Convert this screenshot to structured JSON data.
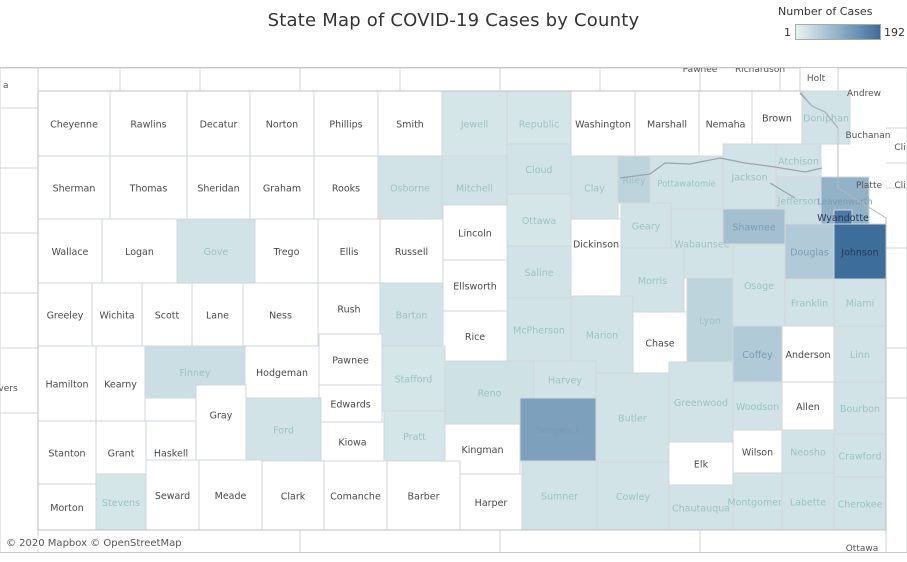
{
  "title": "State Map of COVID-19 Cases by County",
  "legend": {
    "title": "Number of Cases",
    "min": "1",
    "max": "192",
    "color_min": "#e6f4f2",
    "color_max": "#3d6e9b"
  },
  "attribution": "© 2020 Mapbox  © OpenStreetMap",
  "neighbor_labels": [
    "Pawnee",
    "Richardson",
    "Holt",
    "Andrew",
    "Buchanan",
    "Cli",
    "Platte",
    "Cli",
    "Ottawa",
    "vers",
    "a"
  ],
  "counties": [
    {
      "name": "Cheyenne",
      "cases": 0
    },
    {
      "name": "Rawlins",
      "cases": 0
    },
    {
      "name": "Decatur",
      "cases": 0
    },
    {
      "name": "Norton",
      "cases": 0
    },
    {
      "name": "Phillips",
      "cases": 0
    },
    {
      "name": "Smith",
      "cases": 0
    },
    {
      "name": "Jewell",
      "cases": 3
    },
    {
      "name": "Republic",
      "cases": 3
    },
    {
      "name": "Washington",
      "cases": 0
    },
    {
      "name": "Marshall",
      "cases": 0
    },
    {
      "name": "Nemaha",
      "cases": 0
    },
    {
      "name": "Brown",
      "cases": 0
    },
    {
      "name": "Doniphan",
      "cases": 4
    },
    {
      "name": "Sherman",
      "cases": 0
    },
    {
      "name": "Thomas",
      "cases": 0
    },
    {
      "name": "Sheridan",
      "cases": 0
    },
    {
      "name": "Graham",
      "cases": 0
    },
    {
      "name": "Rooks",
      "cases": 0
    },
    {
      "name": "Osborne",
      "cases": 4
    },
    {
      "name": "Mitchell",
      "cases": 4
    },
    {
      "name": "Cloud",
      "cases": 4
    },
    {
      "name": "Clay",
      "cases": 4
    },
    {
      "name": "Riley",
      "cases": 12
    },
    {
      "name": "Pottawatomie",
      "cases": 4
    },
    {
      "name": "Jackson",
      "cases": 4
    },
    {
      "name": "Atchison",
      "cases": 4
    },
    {
      "name": "Jefferson",
      "cases": 6
    },
    {
      "name": "Leavenworth",
      "cases": 48
    },
    {
      "name": "Wallace",
      "cases": 0
    },
    {
      "name": "Logan",
      "cases": 0
    },
    {
      "name": "Gove",
      "cases": 4
    },
    {
      "name": "Trego",
      "cases": 0
    },
    {
      "name": "Ellis",
      "cases": 0
    },
    {
      "name": "Russell",
      "cases": 0
    },
    {
      "name": "Lincoln",
      "cases": 0
    },
    {
      "name": "Ottawa",
      "cases": 3
    },
    {
      "name": "Dickinson",
      "cases": 0
    },
    {
      "name": "Geary",
      "cases": 4
    },
    {
      "name": "Wabaunsee",
      "cases": 4
    },
    {
      "name": "Shawnee",
      "cases": 30
    },
    {
      "name": "Douglas",
      "cases": 20
    },
    {
      "name": "Wyandotte",
      "cases": 160
    },
    {
      "name": "Johnson",
      "cases": 192
    },
    {
      "name": "Greeley",
      "cases": 0
    },
    {
      "name": "Wichita",
      "cases": 0
    },
    {
      "name": "Scott",
      "cases": 0
    },
    {
      "name": "Lane",
      "cases": 0
    },
    {
      "name": "Ness",
      "cases": 0
    },
    {
      "name": "Rush",
      "cases": 0
    },
    {
      "name": "Barton",
      "cases": 4
    },
    {
      "name": "Ellsworth",
      "cases": 0
    },
    {
      "name": "Saline",
      "cases": 4
    },
    {
      "name": "Morris",
      "cases": 4
    },
    {
      "name": "Osage",
      "cases": 4
    },
    {
      "name": "Franklin",
      "cases": 4
    },
    {
      "name": "Miami",
      "cases": 4
    },
    {
      "name": "Rice",
      "cases": 0
    },
    {
      "name": "McPherson",
      "cases": 4
    },
    {
      "name": "Marion",
      "cases": 4
    },
    {
      "name": "Chase",
      "cases": 0
    },
    {
      "name": "Lyon",
      "cases": 12
    },
    {
      "name": "Coffey",
      "cases": 20
    },
    {
      "name": "Anderson",
      "cases": 0
    },
    {
      "name": "Linn",
      "cases": 4
    },
    {
      "name": "Hamilton",
      "cases": 0
    },
    {
      "name": "Kearny",
      "cases": 0
    },
    {
      "name": "Finney",
      "cases": 6
    },
    {
      "name": "Hodgeman",
      "cases": 0
    },
    {
      "name": "Pawnee",
      "cases": 0
    },
    {
      "name": "Stafford",
      "cases": 3
    },
    {
      "name": "Reno",
      "cases": 5
    },
    {
      "name": "Harvey",
      "cases": 4
    },
    {
      "name": "Edwards",
      "cases": 0
    },
    {
      "name": "Stanton",
      "cases": 0
    },
    {
      "name": "Grant",
      "cases": 0
    },
    {
      "name": "Haskell",
      "cases": 0
    },
    {
      "name": "Gray",
      "cases": 0
    },
    {
      "name": "Ford",
      "cases": 4
    },
    {
      "name": "Kiowa",
      "cases": 0
    },
    {
      "name": "Pratt",
      "cases": 3
    },
    {
      "name": "Kingman",
      "cases": 0
    },
    {
      "name": "Sedgwick",
      "cases": 75
    },
    {
      "name": "Butler",
      "cases": 4
    },
    {
      "name": "Greenwood",
      "cases": 4
    },
    {
      "name": "Woodson",
      "cases": 4
    },
    {
      "name": "Allen",
      "cases": 0
    },
    {
      "name": "Bourbon",
      "cases": 4
    },
    {
      "name": "Elk",
      "cases": 0
    },
    {
      "name": "Wilson",
      "cases": 0
    },
    {
      "name": "Neosho",
      "cases": 4
    },
    {
      "name": "Crawford",
      "cases": 4
    },
    {
      "name": "Morton",
      "cases": 0
    },
    {
      "name": "Stevens",
      "cases": 3
    },
    {
      "name": "Seward",
      "cases": 0
    },
    {
      "name": "Meade",
      "cases": 0
    },
    {
      "name": "Clark",
      "cases": 0
    },
    {
      "name": "Comanche",
      "cases": 0
    },
    {
      "name": "Barber",
      "cases": 0
    },
    {
      "name": "Harper",
      "cases": 0
    },
    {
      "name": "Sumner",
      "cases": 4
    },
    {
      "name": "Cowley",
      "cases": 4
    },
    {
      "name": "Chautauqua",
      "cases": 4
    },
    {
      "name": "Montgomery",
      "cases": 4
    },
    {
      "name": "Labette",
      "cases": 4
    },
    {
      "name": "Cherokee",
      "cases": 4
    }
  ]
}
